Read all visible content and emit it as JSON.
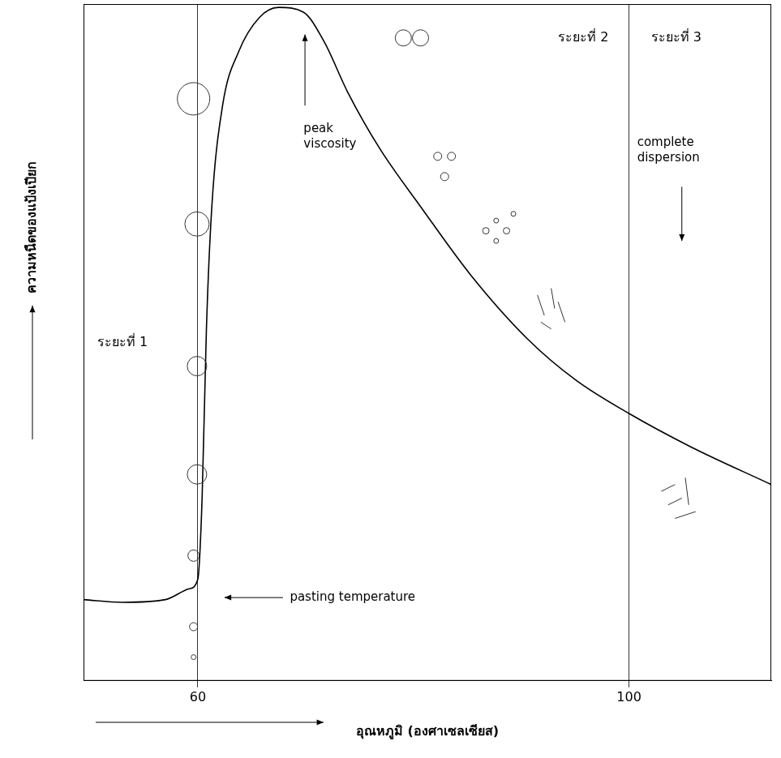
{
  "chart_data": {
    "type": "line",
    "x_label": "อุณหภูมิ (องศาเซลเซียส)",
    "y_label": "ความหนืดของแป้งเปียก",
    "x": [
      49.4,
      53,
      57,
      59.2,
      60,
      60.4,
      60.8,
      61.3,
      62.3,
      63.8,
      65.7,
      67.5,
      69.8,
      71.7,
      73.9,
      76.9,
      80.7,
      85.3,
      90.6,
      95.1,
      100,
      105.7,
      113.2
    ],
    "values": [
      12,
      11.6,
      12,
      13.6,
      15,
      27,
      52,
      70,
      85,
      93,
      98,
      99.5,
      98.8,
      94.5,
      87,
      78.6,
      70,
      60,
      50.5,
      44.4,
      39.5,
      34.6,
      29
    ],
    "color": "#000000",
    "xlim": [
      49.4,
      113.2
    ],
    "xticks": [
      60,
      100
    ],
    "ylim": [
      0,
      100
    ],
    "grid": true,
    "tick_labels": "x",
    "annotations": [
      "peak viscosity",
      "complete dispersion",
      "pasting temperature",
      "ระยะที่ 1",
      "ระยะที่ 2",
      "ระยะที่ 3"
    ]
  }
}
